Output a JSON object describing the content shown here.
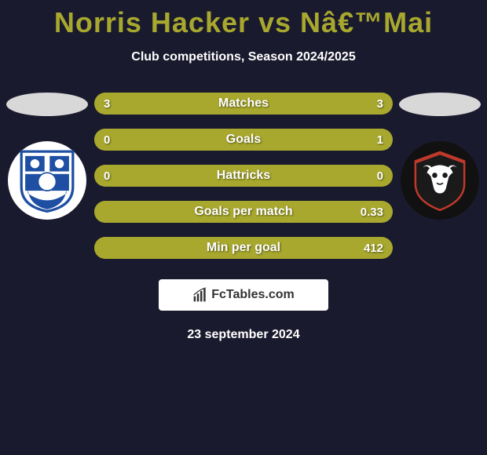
{
  "title": "Norris Hacker vs Nâ€™Mai",
  "subtitle": "Club competitions, Season 2024/2025",
  "date": "23 september 2024",
  "brand_text": "FcTables.com",
  "colors": {
    "background": "#1a1a2e",
    "title": "#a8a82e",
    "bar_base": "#7a7a38",
    "bar_fill": "#a8a82e",
    "ellipse": "#d8d8d8"
  },
  "stats": [
    {
      "label": "Matches",
      "left_val": "3",
      "right_val": "3",
      "left_pct": 50,
      "right_pct": 50
    },
    {
      "label": "Goals",
      "left_val": "0",
      "right_val": "1",
      "left_pct": 0,
      "right_pct": 100
    },
    {
      "label": "Hattricks",
      "left_val": "0",
      "right_val": "0",
      "left_pct": 50,
      "right_pct": 50
    },
    {
      "label": "Goals per match",
      "left_val": "",
      "right_val": "0.33",
      "left_pct": 0,
      "right_pct": 100
    },
    {
      "label": "Min per goal",
      "left_val": "",
      "right_val": "412",
      "left_pct": 0,
      "right_pct": 100
    }
  ],
  "left_team": {
    "name": "Tranmere Rovers"
  },
  "right_team": {
    "name": "Salford City"
  }
}
